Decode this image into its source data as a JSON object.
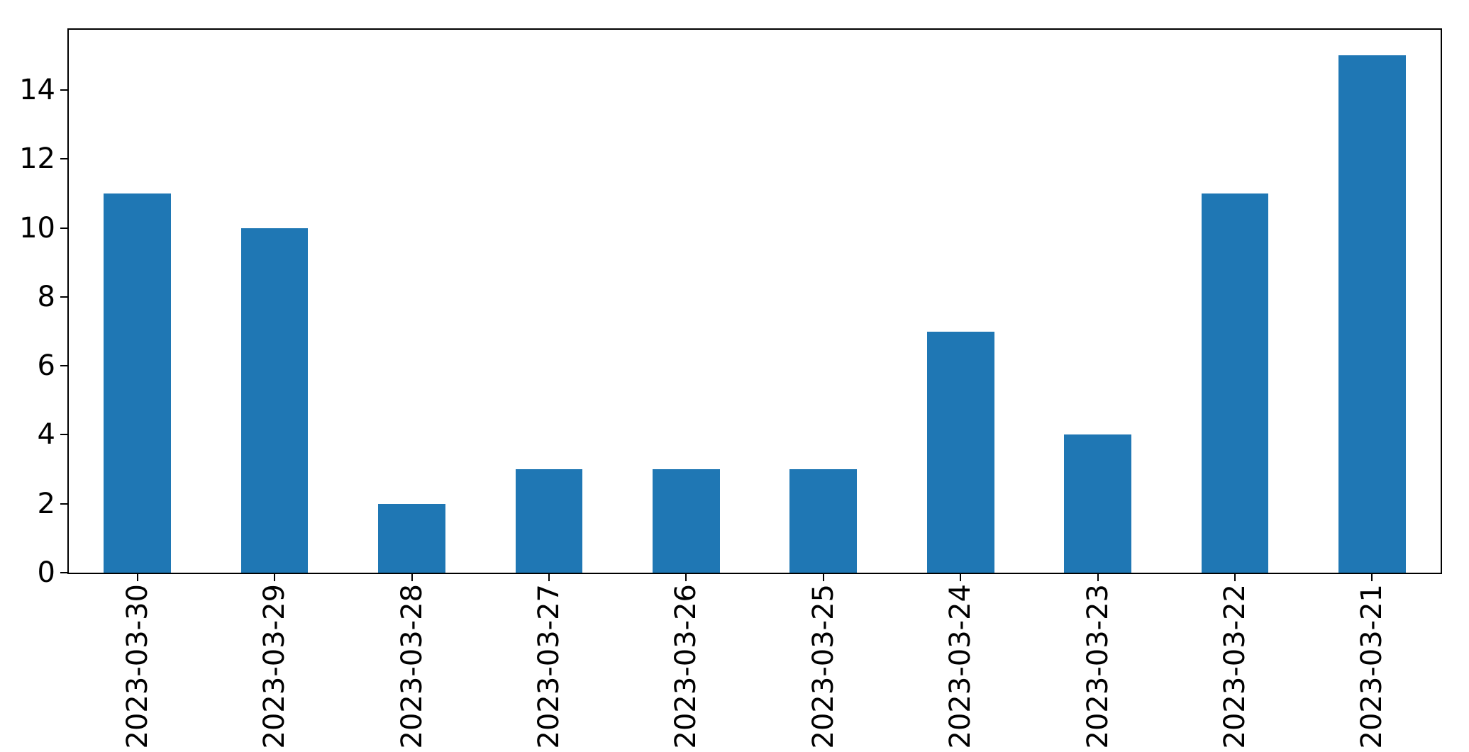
{
  "chart_data": {
    "type": "bar",
    "categories": [
      "2023-03-30",
      "2023-03-29",
      "2023-03-28",
      "2023-03-27",
      "2023-03-26",
      "2023-03-25",
      "2023-03-24",
      "2023-03-23",
      "2023-03-22",
      "2023-03-21"
    ],
    "values": [
      11,
      10,
      2,
      3,
      3,
      3,
      7,
      4,
      11,
      15
    ],
    "title": "",
    "xlabel": "",
    "ylabel": "",
    "ylim": [
      0,
      15.75
    ],
    "yticks": [
      0,
      2,
      4,
      6,
      8,
      10,
      12,
      14
    ],
    "x_tick_rotation": 90,
    "grid": false,
    "legend": null,
    "bar_color": "#1f77b4",
    "spine_color": "#000000",
    "background_color": "#ffffff"
  }
}
